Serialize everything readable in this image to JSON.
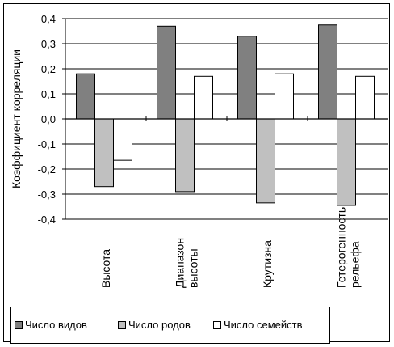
{
  "chart_data": {
    "type": "bar",
    "categories": [
      "Высота",
      "Диапазон высоты",
      "Крутизна",
      "Гетерогенность рельефа"
    ],
    "category_label_lines": [
      [
        "Высота"
      ],
      [
        "Диапазон",
        "высоты"
      ],
      [
        "Крутизна"
      ],
      [
        "Гетерогенность",
        "рельефа"
      ]
    ],
    "series": [
      {
        "name": "Число видов",
        "color": "#808080",
        "values": [
          0.18,
          0.37,
          0.33,
          0.375
        ]
      },
      {
        "name": "Число родов",
        "color": "#c0c0c0",
        "values": [
          -0.27,
          -0.29,
          -0.335,
          -0.345
        ]
      },
      {
        "name": "Число семейств",
        "color": "#ffffff",
        "values": [
          -0.165,
          0.17,
          0.18,
          0.17
        ]
      }
    ],
    "ylabel": "Коэффициент корреляции",
    "ylim": [
      -0.4,
      0.4
    ],
    "yticks": [
      0.4,
      0.3,
      0.2,
      0.1,
      0.0,
      -0.1,
      -0.2,
      -0.3,
      -0.4
    ],
    "ytick_labels": [
      "0,4",
      "0,3",
      "0,2",
      "0,1",
      "0,0",
      "-0,1",
      "-0,2",
      "-0,3",
      "-0,4"
    ],
    "grid": true,
    "legend_position": "bottom"
  }
}
